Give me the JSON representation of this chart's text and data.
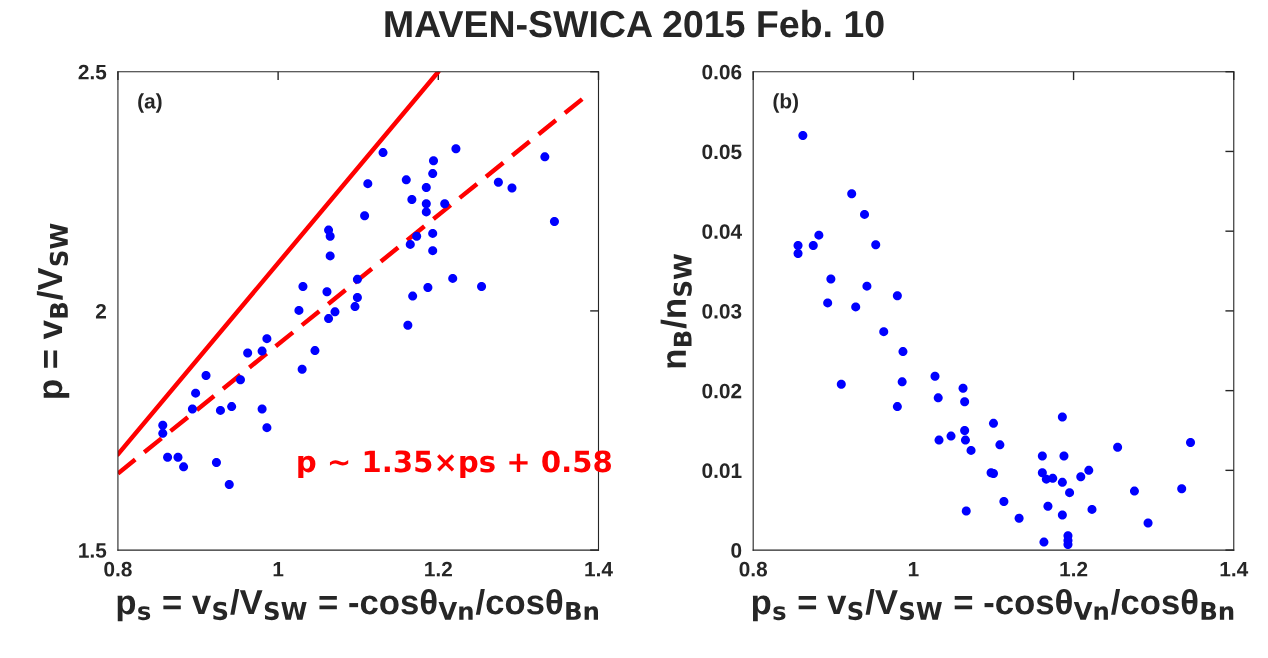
{
  "chart_data": [
    {
      "type": "scatter",
      "title": "MAVEN-SWICA 2015 Feb. 10",
      "xlabel": "p$_{s}$ = v$_{S}$/V$_{SW}$ = -cosθ$_{Vn}$/cosθ$_{Bn}$",
      "ylabel": "p = v$_{B}$/V$_{SW}$",
      "xlim": [
        0.8,
        1.4
      ],
      "ylim": [
        1.5,
        2.5
      ],
      "xticks": [
        0.8,
        1,
        1.2,
        1.4
      ],
      "yticks": [
        1.5,
        2,
        2.5
      ],
      "grid": false,
      "legend": false,
      "annotations": [
        "(a)",
        "p ∼ 1.35×ps + 0.58"
      ],
      "series": [
        {
          "color": "#0000ff",
          "marker": "circle",
          "x": [
            1.131,
            1.222,
            1.333,
            1.194,
            1.193,
            1.112,
            1.16,
            1.275,
            1.292,
            1.185,
            1.167,
            1.185,
            1.208,
            1.185,
            1.108,
            1.345,
            1.063,
            1.065,
            1.193,
            1.173,
            1.165,
            1.065,
            1.193,
            1.099,
            1.218,
            1.254,
            1.031,
            1.061,
            1.187,
            1.168,
            1.099,
            1.096,
            1.026,
            1.071,
            1.063,
            1.162,
            0.986,
            0.962,
            0.98,
            1.046,
            1.03,
            0.91,
            0.953,
            0.897,
            0.893,
            0.928,
            0.942,
            0.98,
            0.986,
            0.856,
            0.856,
            0.862,
            0.875,
            0.882,
            0.923,
            0.939
          ],
          "values": [
            2.331,
            2.339,
            2.322,
            2.314,
            2.287,
            2.266,
            2.274,
            2.269,
            2.257,
            2.258,
            2.233,
            2.224,
            2.224,
            2.207,
            2.199,
            2.187,
            2.169,
            2.156,
            2.162,
            2.156,
            2.139,
            2.115,
            2.126,
            2.066,
            2.068,
            2.051,
            2.051,
            2.04,
            2.049,
            2.031,
            2.028,
            2.009,
            2.001,
            1.998,
            1.984,
            1.97,
            1.942,
            1.912,
            1.916,
            1.917,
            1.878,
            1.865,
            1.856,
            1.828,
            1.795,
            1.792,
            1.8,
            1.795,
            1.756,
            1.761,
            1.744,
            1.694,
            1.694,
            1.674,
            1.683,
            1.637
          ]
        },
        {
          "type": "line",
          "color": "#ff0000",
          "line_style": "solid",
          "marker": "none",
          "x": [
            0.8,
            1.2
          ],
          "values": [
            1.7,
            2.5
          ]
        },
        {
          "type": "line",
          "color": "#ff0000",
          "line_style": "dashed",
          "marker": "none",
          "x": [
            0.8,
            1.385
          ],
          "values": [
            1.66,
            2.45
          ]
        }
      ]
    },
    {
      "type": "scatter",
      "xlabel": "p$_{s}$ = v$_{S}$/V$_{SW}$ = -cosθ$_{Vn}$/cosθ$_{Bn}$",
      "ylabel": "n$_{B}$/n$_{SW}$",
      "xlim": [
        0.8,
        1.4
      ],
      "ylim": [
        0,
        0.06
      ],
      "xticks": [
        0.8,
        1,
        1.2,
        1.4
      ],
      "yticks": [
        0,
        0.01,
        0.02,
        0.03,
        0.04,
        0.05,
        0.06
      ],
      "grid": false,
      "legend": false,
      "annotations": [
        "(b)"
      ],
      "series": [
        {
          "marker": "circle",
          "color": "#0000ff",
          "x": [
            0.862,
            0.923,
            0.939,
            0.882,
            0.856,
            0.875,
            0.953,
            0.856,
            0.897,
            0.942,
            0.98,
            0.893,
            0.928,
            0.963,
            0.987,
            0.91,
            0.986,
            1.027,
            1.062,
            1.031,
            1.064,
            0.98,
            1.186,
            1.1,
            1.064,
            1.047,
            1.032,
            1.065,
            1.072,
            1.108,
            1.255,
            1.346,
            1.161,
            1.188,
            1.097,
            1.1,
            1.161,
            1.219,
            1.166,
            1.174,
            1.186,
            1.209,
            1.195,
            1.276,
            1.335,
            1.113,
            1.168,
            1.066,
            1.223,
            1.186,
            1.132,
            1.293,
            1.163,
            1.193,
            1.193,
            1.193
          ],
          "values": [
            0.052,
            0.0447,
            0.0421,
            0.0395,
            0.0382,
            0.0382,
            0.0383,
            0.0372,
            0.034,
            0.0331,
            0.0319,
            0.031,
            0.0305,
            0.0274,
            0.0249,
            0.0208,
            0.0211,
            0.0218,
            0.0203,
            0.0191,
            0.0186,
            0.018,
            0.0167,
            0.0159,
            0.015,
            0.0143,
            0.0138,
            0.0138,
            0.0125,
            0.0132,
            0.0129,
            0.0135,
            0.0118,
            0.0118,
            0.0097,
            0.0096,
            0.0097,
            0.01,
            0.0089,
            0.009,
            0.0085,
            0.0092,
            0.0072,
            0.0074,
            0.0077,
            0.0061,
            0.0055,
            0.0049,
            0.0051,
            0.0044,
            0.004,
            0.0034,
            0.001,
            0.0018,
            0.0012,
            0.0007
          ]
        }
      ]
    }
  ]
}
